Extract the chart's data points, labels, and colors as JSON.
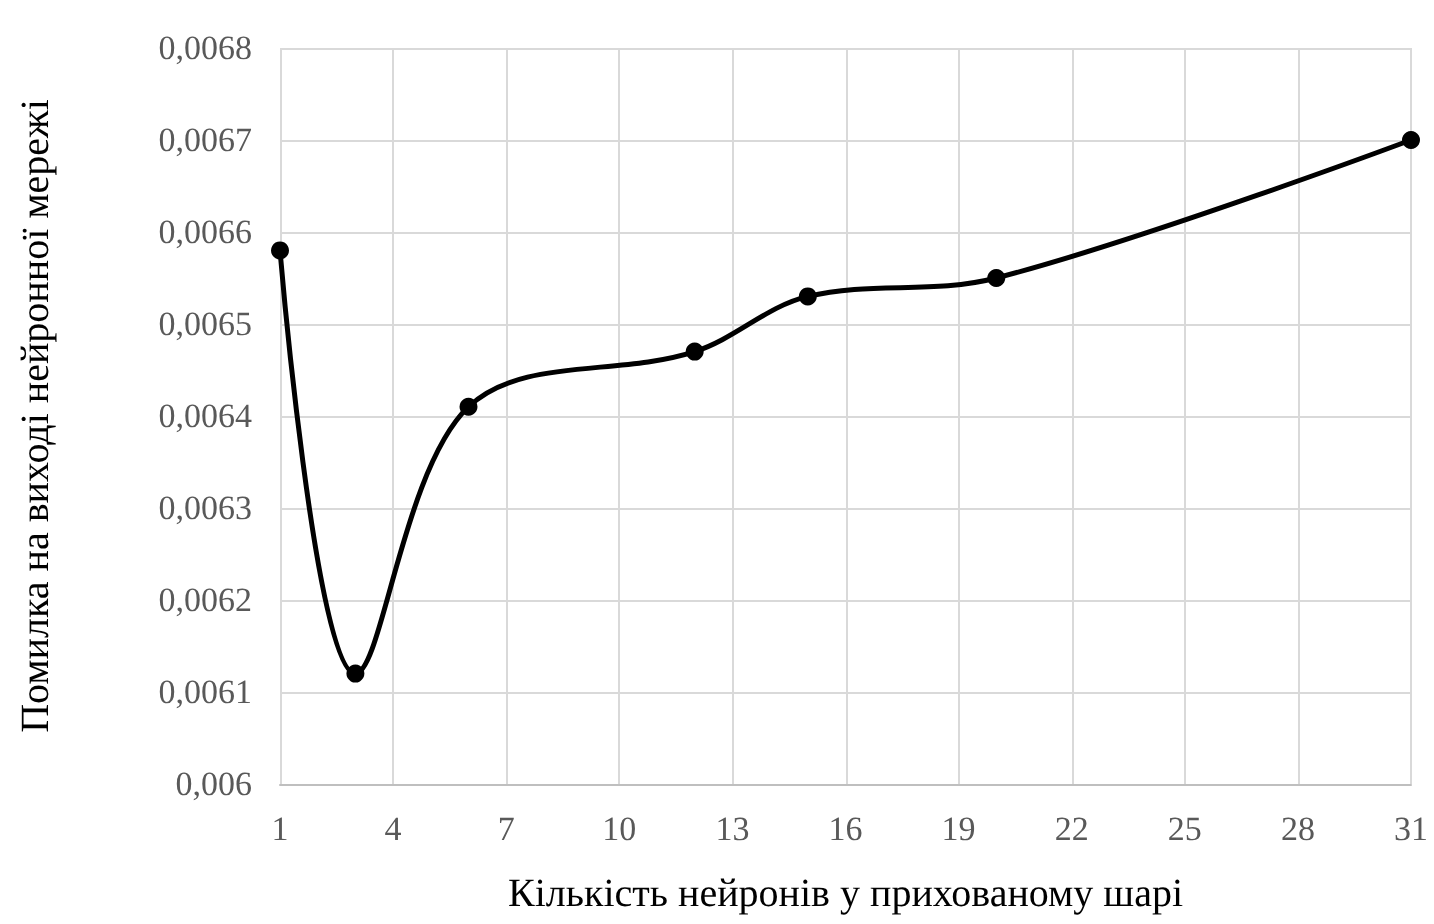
{
  "chart_data": {
    "type": "line",
    "xlabel": "Кількість нейронів у прихованому шарі",
    "ylabel": "Помилка на виході нейронної мережі",
    "x": [
      1,
      3,
      6,
      12,
      15,
      20,
      31
    ],
    "series": [
      {
        "color": "#000000",
        "values": [
          0.00658,
          0.00612,
          0.00641,
          0.00647,
          0.00653,
          0.00655,
          0.0067
        ]
      }
    ],
    "xlim": [
      1,
      31
    ],
    "xticks": [
      1,
      4,
      7,
      10,
      13,
      16,
      19,
      22,
      25,
      28,
      31
    ],
    "ylim": [
      0.006,
      0.0068
    ],
    "yticks": [
      {
        "value": 0.006,
        "label": "0,006"
      },
      {
        "value": 0.0061,
        "label": "0,0061"
      },
      {
        "value": 0.0062,
        "label": "0,0062"
      },
      {
        "value": 0.0063,
        "label": "0,0063"
      },
      {
        "value": 0.0064,
        "label": "0,0064"
      },
      {
        "value": 0.0065,
        "label": "0,0065"
      },
      {
        "value": 0.0066,
        "label": "0,0066"
      },
      {
        "value": 0.0067,
        "label": "0,0067"
      },
      {
        "value": 0.0068,
        "label": "0,0068"
      }
    ],
    "grid": true,
    "marker": "circle",
    "line_style": "solid"
  }
}
